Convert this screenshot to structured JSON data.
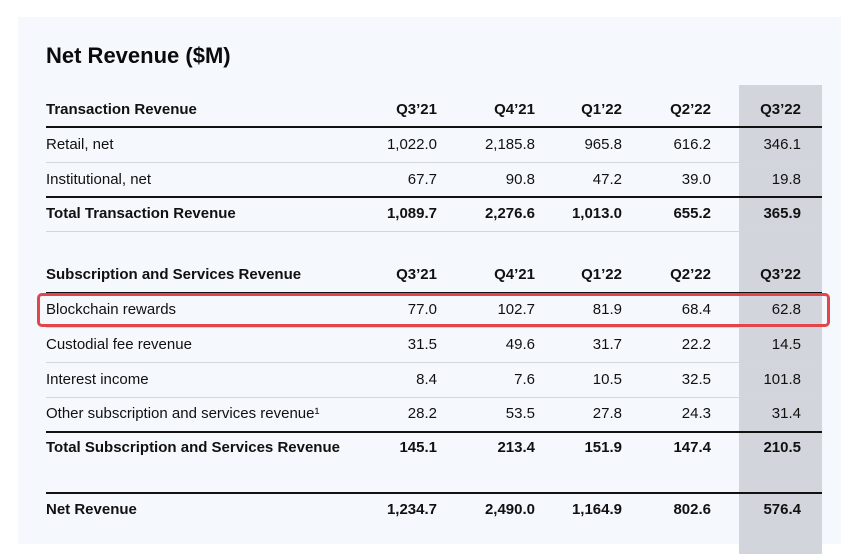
{
  "title": "Net Revenue ($M)",
  "highlight_color": "#e0464a",
  "sections": [
    {
      "header": {
        "label": "Transaction Revenue",
        "cols": [
          "Q3’21",
          "Q4’21",
          "Q1’22",
          "Q2’22",
          "Q3’22"
        ]
      },
      "rows": [
        {
          "label": "Retail, net",
          "values": [
            "1,022.0",
            "2,185.8",
            "965.8",
            "616.2",
            "346.1"
          ]
        },
        {
          "label": "Institutional, net",
          "values": [
            "67.7",
            "90.8",
            "47.2",
            "39.0",
            "19.8"
          ]
        }
      ],
      "total": {
        "label": "Total Transaction Revenue",
        "values": [
          "1,089.7",
          "2,276.6",
          "1,013.0",
          "655.2",
          "365.9"
        ]
      }
    },
    {
      "header": {
        "label": "Subscription and Services Revenue",
        "cols": [
          "Q3’21",
          "Q4’21",
          "Q1’22",
          "Q2’22",
          "Q3’22"
        ]
      },
      "rows": [
        {
          "label": "Blockchain rewards",
          "values": [
            "77.0",
            "102.7",
            "81.9",
            "68.4",
            "62.8"
          ],
          "highlighted": true
        },
        {
          "label": "Custodial fee revenue",
          "values": [
            "31.5",
            "49.6",
            "31.7",
            "22.2",
            "14.5"
          ]
        },
        {
          "label": "Interest income",
          "values": [
            "8.4",
            "7.6",
            "10.5",
            "32.5",
            "101.8"
          ]
        },
        {
          "label": "Other subscription and services revenue¹",
          "values": [
            "28.2",
            "53.5",
            "27.8",
            "24.3",
            "31.4"
          ]
        }
      ],
      "total": {
        "label": "Total Subscription and Services Revenue",
        "values": [
          "145.1",
          "213.4",
          "151.9",
          "147.4",
          "210.5"
        ]
      }
    }
  ],
  "net_revenue": {
    "label": "Net Revenue",
    "values": [
      "1,234.7",
      "2,490.0",
      "1,164.9",
      "802.6",
      "576.4"
    ]
  }
}
